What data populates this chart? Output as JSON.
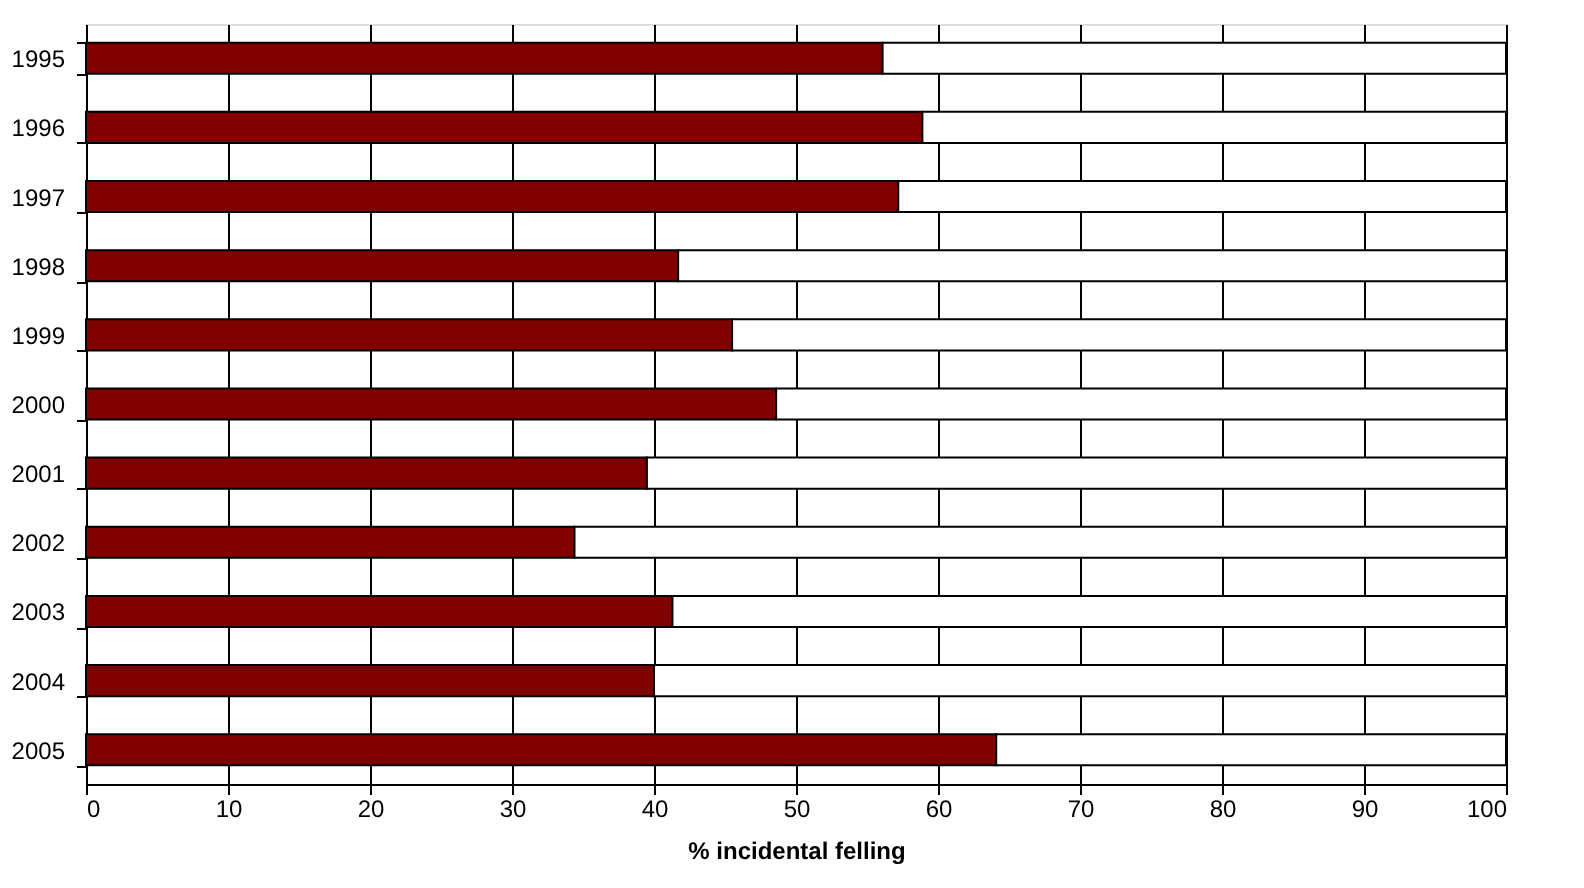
{
  "chart_data": {
    "type": "bar",
    "orientation": "horizontal",
    "stacked": true,
    "xlabel": "% incidental felling",
    "categories": [
      "1995",
      "1996",
      "1997",
      "1998",
      "1999",
      "2000",
      "2001",
      "2002",
      "2003",
      "2004",
      "2005"
    ],
    "series": [
      {
        "color": "#800000",
        "values": [
          56.1,
          58.9,
          57.2,
          41.7,
          45.5,
          48.6,
          39.5,
          34.4,
          41.3,
          40.0,
          64.1
        ]
      },
      {
        "color": "#ffffff",
        "values": [
          43.9,
          41.1,
          42.8,
          58.3,
          54.5,
          51.4,
          60.5,
          65.6,
          58.7,
          60.0,
          35.9
        ]
      }
    ],
    "xlim": [
      0,
      100
    ],
    "xticks": [
      0,
      10,
      20,
      30,
      40,
      50,
      60,
      70,
      80,
      90,
      100
    ],
    "grid": "x",
    "legend": false
  }
}
